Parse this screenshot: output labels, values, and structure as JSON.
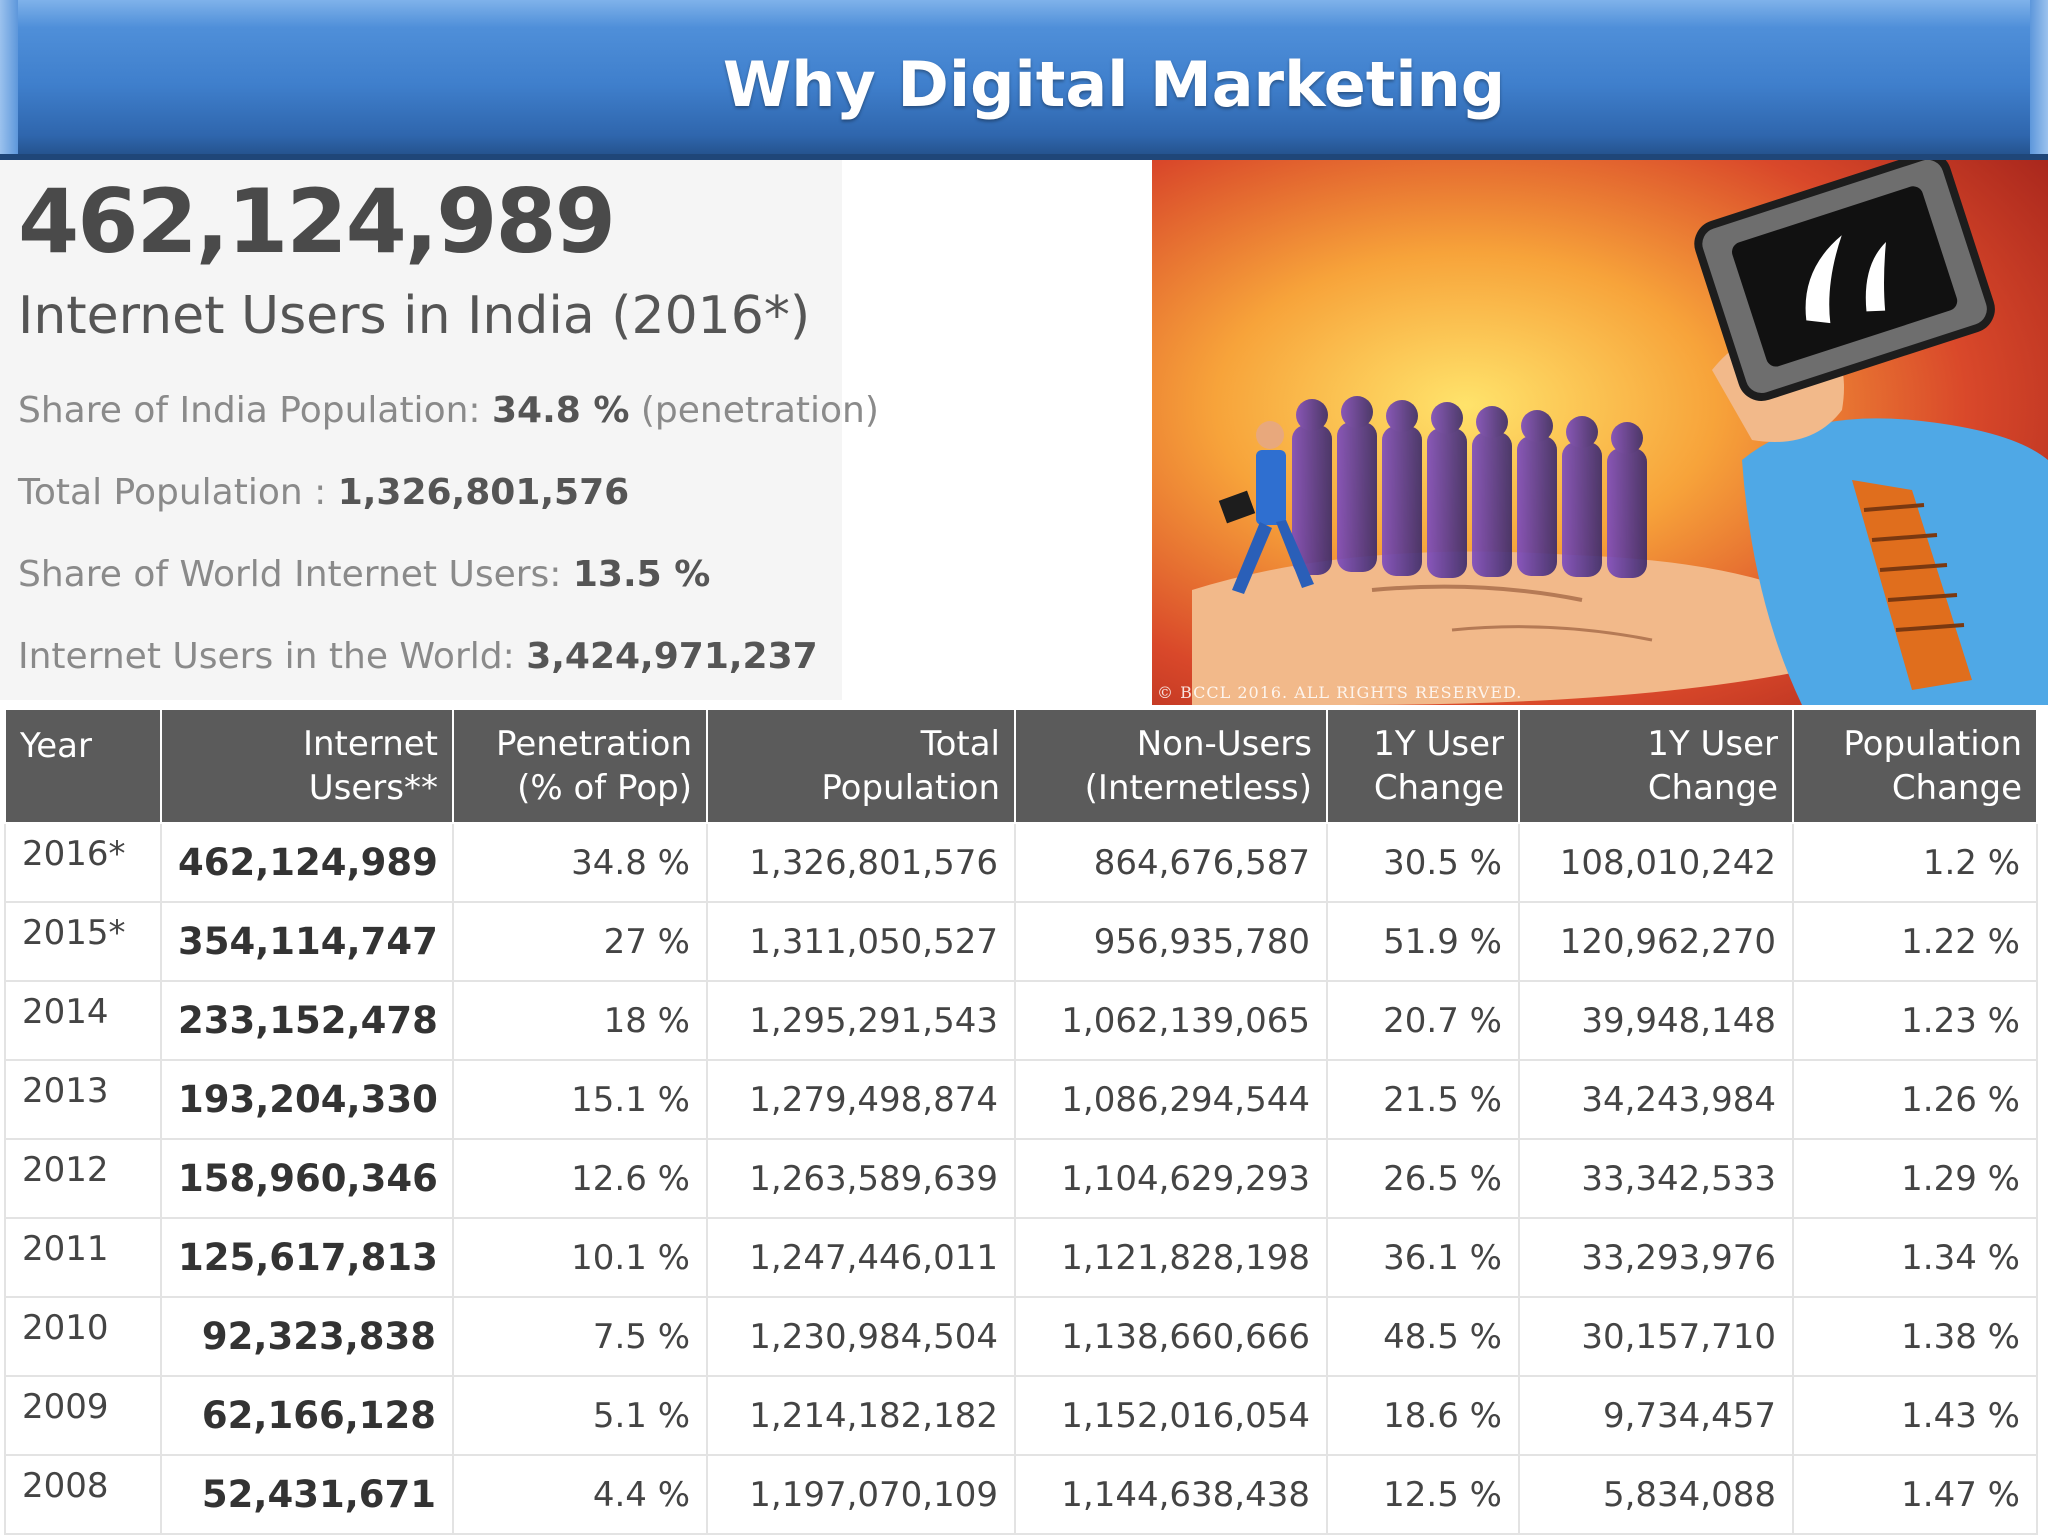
{
  "slide": {
    "title": "Why Digital Marketing"
  },
  "stats": {
    "headline_number": "462,124,989",
    "headline_caption": "Internet Users in India (2016*)",
    "share_india_label": "Share of India Population:",
    "share_india_value": "34.8 %",
    "share_india_note": "(penetration)",
    "total_population_label": "Total Population :",
    "total_population_value": "1,326,801,576",
    "share_world_label": "Share of World Internet Users:",
    "share_world_value": "13.5 %",
    "world_users_label": "Internet Users in the World:",
    "world_users_value": "3,424,971,237"
  },
  "illustration": {
    "copyright": "© BCCL 2016. ALL RIGHTS RESERVED."
  },
  "table": {
    "headers": [
      [
        "Year"
      ],
      [
        "Internet",
        "Users**"
      ],
      [
        "Penetration",
        "(% of Pop)"
      ],
      [
        "Total",
        "Population"
      ],
      [
        "Non-Users",
        "(Internetless)"
      ],
      [
        "1Y User",
        "Change"
      ],
      [
        "1Y User",
        "Change"
      ],
      [
        "Population",
        "Change"
      ]
    ],
    "rows": [
      [
        "2016*",
        "462,124,989",
        "34.8 %",
        "1,326,801,576",
        "864,676,587",
        "30.5 %",
        "108,010,242",
        "1.2 %"
      ],
      [
        "2015*",
        "354,114,747",
        "27 %",
        "1,311,050,527",
        "956,935,780",
        "51.9 %",
        "120,962,270",
        "1.22 %"
      ],
      [
        "2014",
        "233,152,478",
        "18 %",
        "1,295,291,543",
        "1,062,139,065",
        "20.7 %",
        "39,948,148",
        "1.23 %"
      ],
      [
        "2013",
        "193,204,330",
        "15.1 %",
        "1,279,498,874",
        "1,086,294,544",
        "21.5 %",
        "34,243,984",
        "1.26 %"
      ],
      [
        "2012",
        "158,960,346",
        "12.6 %",
        "1,263,589,639",
        "1,104,629,293",
        "26.5 %",
        "33,342,533",
        "1.29 %"
      ],
      [
        "2011",
        "125,617,813",
        "10.1 %",
        "1,247,446,011",
        "1,121,828,198",
        "36.1 %",
        "33,293,976",
        "1.34 %"
      ],
      [
        "2010",
        "92,323,838",
        "7.5 %",
        "1,230,984,504",
        "1,138,660,666",
        "48.5 %",
        "30,157,710",
        "1.38 %"
      ],
      [
        "2009",
        "62,166,128",
        "5.1 %",
        "1,214,182,182",
        "1,152,016,054",
        "18.6 %",
        "9,734,457",
        "1.43 %"
      ],
      [
        "2008",
        "52,431,671",
        "4.4 %",
        "1,197,070,109",
        "1,144,638,438",
        "12.5 %",
        "5,834,088",
        "1.47 %"
      ]
    ]
  }
}
